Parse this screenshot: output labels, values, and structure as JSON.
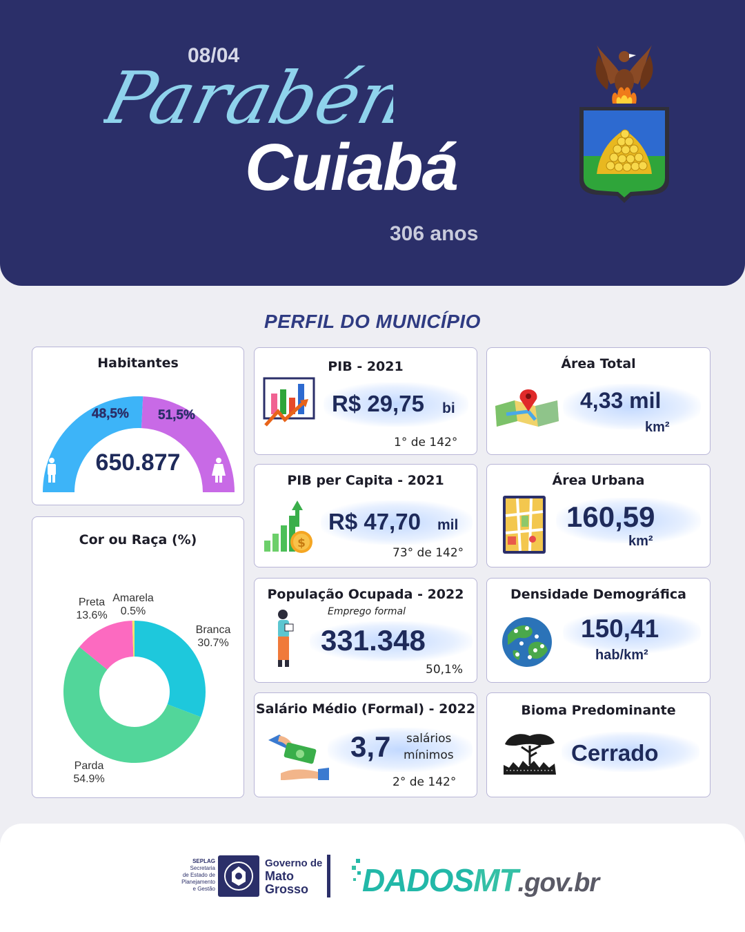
{
  "header": {
    "greeting": "Parabéns",
    "date": "08/04",
    "city": "Cuiabá",
    "years": "306 anos"
  },
  "section_title": "PERFIL DO MUNICÍPIO",
  "cards": {
    "habitantes": {
      "title": "Habitantes",
      "value": "650.877",
      "male_pct": "48,5%",
      "female_pct": "51,5%",
      "male_share": 48.5,
      "female_share": 51.5
    },
    "pib": {
      "title": "PIB - 2021",
      "value": "R$ 29,75",
      "unit": "bi",
      "rank": "1° de 142°"
    },
    "area_total": {
      "title": "Área Total",
      "value": "4,33 mil",
      "unit": "km²"
    },
    "pib_capita": {
      "title": "PIB per Capita - 2021",
      "value": "R$ 47,70",
      "unit": "mil",
      "rank": "73° de 142°"
    },
    "area_urbana": {
      "title": "Área Urbana",
      "value": "160,59",
      "unit": "km²"
    },
    "populacao": {
      "title": "População  Ocupada - 2022",
      "subtitle": "Emprego formal",
      "value": "331.348",
      "pct": "50,1%"
    },
    "densidade": {
      "title": "Densidade Demográfica",
      "value": "150,41",
      "unit": "hab/km²"
    },
    "salario": {
      "title": "Salário Médio (Formal) - 2022",
      "value": "3,7",
      "unit_line1": "salários",
      "unit_line2": "mínimos",
      "rank": "2° de 142°"
    },
    "bioma": {
      "title": "Bioma Predominante",
      "value": "Cerrado"
    },
    "cor_raca": {
      "title": "Cor ou Raça (%)"
    }
  },
  "chart_data": {
    "type": "pie",
    "title": "Cor ou Raça (%)",
    "categories": [
      "Branca",
      "Parda",
      "Preta",
      "Amarela"
    ],
    "values": [
      30.7,
      54.9,
      13.6,
      0.5
    ],
    "labels": [
      "30.7%",
      "54.9%",
      "13.6%",
      "0.5%"
    ],
    "colors": [
      "#1ec8dc",
      "#52d69a",
      "#fc6ac0",
      "#f5e56a"
    ],
    "donut": true
  },
  "colors": {
    "hero_bg": "#2b2f69",
    "title_blue": "#2f3b82",
    "male": "#3db4f8",
    "female": "#c86ae6"
  },
  "footer": {
    "seplag_lines": [
      "SEPLAG",
      "Secretaria",
      "de Estado de",
      "Planejamento",
      "e Gestão"
    ],
    "governo": [
      "Governo de",
      "Mato",
      "Grosso"
    ],
    "dados_1": "DADOS",
    "dados_2": "MT",
    "dados_3": ".gov.br"
  }
}
